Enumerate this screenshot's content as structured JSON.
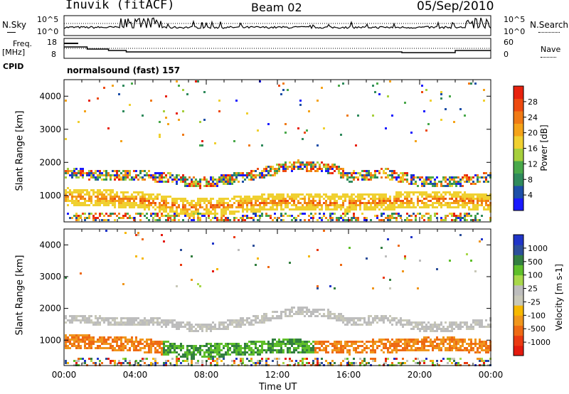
{
  "header": {
    "station": "Inuvik (fitACF)",
    "beam": "Beam 02",
    "date": "05/Sep/2010"
  },
  "strip": {
    "nsky_label": "N.Sky",
    "nsky_ticks": [
      "10^5",
      "10^0"
    ],
    "nsearch_label": "N.Search",
    "nsearch_ticks": [
      "10^5",
      "10^0"
    ],
    "freq_label": "Freq.",
    "freq_unit": "[MHz]",
    "freq_ticks": [
      "18",
      "8"
    ],
    "nave_label": "Nave",
    "nave_ticks": [
      "60",
      "0"
    ],
    "cpid_label": "CPID",
    "cpid_value": "normalsound (fast) 157"
  },
  "time_axis": {
    "label": "Time UT",
    "ticks": [
      "00:00",
      "04:00",
      "08:00",
      "12:00",
      "16:00",
      "20:00",
      "00:00"
    ]
  },
  "chart_data": [
    {
      "type": "heatmap",
      "ylabel": "Slant Range [km]",
      "xlabel": "Time UT",
      "y_ticks": [
        1000,
        2000,
        3000,
        4000
      ],
      "ylim": [
        200,
        4500
      ],
      "xlim_hours": [
        0,
        24
      ],
      "colorbar": {
        "label": "Power [dB]",
        "ticks": [
          "4",
          "8",
          "12",
          "16",
          "20",
          "24",
          "28"
        ],
        "colors": [
          "#1a1aff",
          "#1d4fa8",
          "#2f8a5c",
          "#49a84a",
          "#a6cf3c",
          "#f0d030",
          "#f5a319",
          "#f07a15",
          "#ee4a10",
          "#e8220e"
        ]
      },
      "bands": [
        {
          "name": "lower",
          "slant_range_km": [
            [
              0,
              1000
            ],
            [
              2,
              950
            ],
            [
              4,
              900
            ],
            [
              6,
              750
            ],
            [
              7,
              650
            ],
            [
              8,
              700
            ],
            [
              10,
              750
            ],
            [
              12,
              850
            ],
            [
              14,
              820
            ],
            [
              16,
              800
            ],
            [
              18,
              850
            ],
            [
              20,
              900
            ],
            [
              22,
              900
            ],
            [
              24,
              800
            ]
          ]
        },
        {
          "name": "upper",
          "slant_range_km": [
            [
              0,
              1700
            ],
            [
              2,
              1650
            ],
            [
              4,
              1650
            ],
            [
              6,
              1550
            ],
            [
              7.5,
              1400
            ],
            [
              9,
              1500
            ],
            [
              11,
              1700
            ],
            [
              13,
              1950
            ],
            [
              15,
              1850
            ],
            [
              16,
              1600
            ],
            [
              18,
              1700
            ],
            [
              20,
              1450
            ],
            [
              22,
              1450
            ],
            [
              24,
              1600
            ]
          ]
        }
      ]
    },
    {
      "type": "heatmap",
      "ylabel": "Slant Range [km]",
      "xlabel": "Time UT",
      "y_ticks": [
        1000,
        2000,
        3000,
        4000
      ],
      "ylim": [
        200,
        4500
      ],
      "xlim_hours": [
        0,
        24
      ],
      "colorbar": {
        "label": "Velocity [m s-1]",
        "ticks": [
          "1000",
          "500",
          "100",
          "25",
          "-25",
          "-100",
          "-500",
          "-1000"
        ],
        "colors": [
          "#2035c8",
          "#2d4f9a",
          "#337f40",
          "#5fbf2a",
          "#a8d84a",
          "#bdbdbd",
          "#c8c8b8",
          "#f6b800",
          "#f0961c",
          "#ee6a14",
          "#ea3a12",
          "#e41a0e"
        ]
      }
    }
  ],
  "colors": {
    "frame": "#000000",
    "background": "#ffffff"
  }
}
